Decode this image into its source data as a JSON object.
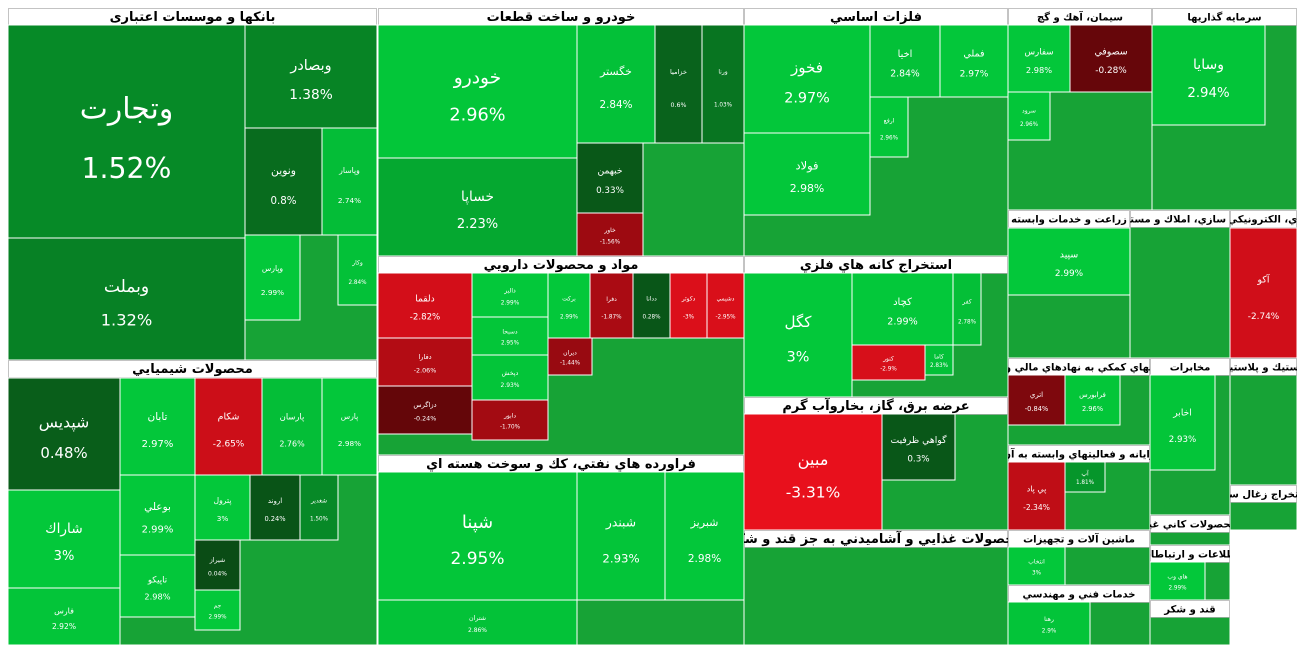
{
  "chart_data": {
    "type": "treemap",
    "sectors": [
      {
        "name": "بانکها و موسسات اعتباری",
        "stocks": [
          "وتجارت",
          "وبملت",
          "وبصادر",
          "ونوين",
          "وپاسار",
          "وپارس",
          "وكار"
        ],
        "values": [
          1.52,
          1.32,
          1.38,
          0.8,
          2.74,
          2.99,
          2.84
        ],
        "value_labels": [
          "1.52%",
          "1.32%",
          "1.38%",
          "0.8%",
          "2.74%",
          "2.99%",
          "2.84%"
        ]
      },
      {
        "name": "محصولات شيميايي",
        "stocks": [
          "شپديس",
          "شاراك",
          "فارس",
          "تابان",
          "شكام",
          "پارسان",
          "پارس",
          "بوعلي",
          "تاپيكو",
          "پترول",
          "اروند",
          "شغدير",
          "شيراز",
          "جم"
        ],
        "values": [
          0.48,
          3,
          2.92,
          2.97,
          -2.65,
          2.76,
          2.98,
          2.99,
          2.98,
          3,
          0.24,
          1.5,
          0.04,
          2.99
        ],
        "value_labels": [
          "0.48%",
          "3%",
          "2.92%",
          "2.97%",
          "-2.65%",
          "2.76%",
          "2.98%",
          "2.99%",
          "2.98%",
          "3%",
          "0.24%",
          "1.50%",
          "0.04%",
          "2.99%"
        ]
      },
      {
        "name": "خودرو و ساخت قطعات",
        "stocks": [
          "خودرو",
          "خساپا",
          "خگستر",
          "خزاميا",
          "ورنا",
          "خبهمن",
          "خاور"
        ],
        "values": [
          2.96,
          2.23,
          2.84,
          0.6,
          1.03,
          0.33,
          -1.56
        ],
        "value_labels": [
          "2.96%",
          "2.23%",
          "2.84%",
          "0.6%",
          "1.03%",
          "0.33%",
          "-1.56%"
        ]
      },
      {
        "name": "مواد و محصولات دارويي",
        "stocks": [
          "دلقما",
          "دفارا",
          "دزاگرس",
          "دالبر",
          "دسبحا",
          "دپخش",
          "دابور",
          "بركت",
          "دفرا",
          "ددانا",
          "دكوثر",
          "دشيمي",
          "ديران"
        ],
        "values": [
          -2.82,
          -2.06,
          -0.24,
          2.99,
          2.95,
          2.93,
          -1.7,
          2.99,
          -1.87,
          0.28,
          -3,
          -2.95,
          -1.44
        ],
        "value_labels": [
          "-2.82%",
          "-2.06%",
          "-0.24%",
          "2.99%",
          "2.95%",
          "2.93%",
          "-1.70%",
          "2.99%",
          "-1.87%",
          "0.28%",
          "-3%",
          "-2.95%",
          "-1.44%"
        ]
      },
      {
        "name": "فراورده هاي نفتي، كك و سوخت هسته اي",
        "stocks": [
          "شپنا",
          "شبندر",
          "شبريز",
          "شتران"
        ],
        "values": [
          2.95,
          2.93,
          2.98,
          2.86
        ],
        "value_labels": [
          "2.95%",
          "2.93%",
          "2.98%",
          "2.86%"
        ]
      },
      {
        "name": "فلزات اساسي",
        "stocks": [
          "فخوز",
          "فولاد",
          "اخيا",
          "فملي",
          "ارفع"
        ],
        "values": [
          2.97,
          2.98,
          2.84,
          2.97,
          2.96
        ],
        "value_labels": [
          "2.97%",
          "2.98%",
          "2.84%",
          "2.97%",
          "2.96%"
        ]
      },
      {
        "name": "استخراج كانه هاي فلزي",
        "stocks": [
          "كگل",
          "كچاد",
          "كنور",
          "كاما",
          "كفر"
        ],
        "values": [
          3,
          2.99,
          -2.9,
          2.83,
          2.78
        ],
        "value_labels": [
          "3%",
          "2.99%",
          "-2.9%",
          "2.83%",
          "2.78%"
        ]
      },
      {
        "name": "عرضه برق، گاز، بخاروآب گرم",
        "stocks": [
          "مبين",
          "گواهي ظرفيت"
        ],
        "values": [
          -3.31,
          0.3
        ],
        "value_labels": [
          "-3.31%",
          "0.3%"
        ]
      },
      {
        "name": "محصولات غذايي و آشاميدني به جز قند و شكر",
        "stocks": [],
        "values": [],
        "value_labels": []
      },
      {
        "name": "سيمان، آهك و گچ",
        "stocks": [
          "سفارس",
          "سصوفي",
          "سرود"
        ],
        "values": [
          2.98,
          -0.28,
          2.96
        ],
        "value_labels": [
          "2.98%",
          "-0.28%",
          "2.96%"
        ]
      },
      {
        "name": "سرمايه گذاريها",
        "stocks": [
          "وسايا"
        ],
        "values": [
          2.94
        ],
        "value_labels": [
          "2.94%"
        ]
      },
      {
        "name": "زراعت و خدمات وابسته",
        "stocks": [
          "سپيد"
        ],
        "values": [
          2.99
        ],
        "value_labels": [
          "2.99%"
        ]
      },
      {
        "name": "انبوه سازي، املاك و مستغلات",
        "stocks": [],
        "values": [],
        "value_labels": []
      },
      {
        "name": "كامپيوتري، الكترونيكي و نوري",
        "stocks": [
          "آكو"
        ],
        "values": [
          -2.74
        ],
        "value_labels": [
          "-2.74%"
        ]
      },
      {
        "name": "فعاليتهاي كمكي به نهادهاي مالي واسط",
        "stocks": [
          "اتري",
          "فرابورس"
        ],
        "values": [
          -0.84,
          2.96
        ],
        "value_labels": [
          "-0.84%",
          "2.96%"
        ]
      },
      {
        "name": "مخابرات",
        "stocks": [
          "اخابر"
        ],
        "values": [
          2.93
        ],
        "value_labels": [
          "2.93%"
        ]
      },
      {
        "name": "رايانه و فعاليتهاي وابسته به آن",
        "stocks": [
          "پي پاد",
          "آپ"
        ],
        "values": [
          -2.34,
          1.81
        ],
        "value_labels": [
          "-2.34%",
          "1.81%"
        ]
      },
      {
        "name": "ماشين آلات و تجهيزات",
        "stocks": [
          "انتخاب"
        ],
        "values": [
          3
        ],
        "value_labels": [
          "3%"
        ]
      },
      {
        "name": "خدمات فني و مهندسي",
        "stocks": [
          "رهنا"
        ],
        "values": [
          2.9
        ],
        "value_labels": [
          "2.9%"
        ]
      },
      {
        "name": "اطلاعات و ارتباطات",
        "stocks": [
          "هاي وب"
        ],
        "values": [
          2.99
        ],
        "value_labels": [
          "2.99%"
        ]
      },
      {
        "name": "لاستيك و پلاستيك",
        "stocks": [],
        "values": [],
        "value_labels": []
      },
      {
        "name": "استخراج زغال سنگ",
        "stocks": [],
        "values": [],
        "value_labels": []
      },
      {
        "name": "ساير محصولات كاني غيرفلزي",
        "stocks": [],
        "values": [],
        "value_labels": []
      },
      {
        "name": "قند و شكر",
        "stocks": [],
        "values": [],
        "value_labels": []
      }
    ]
  }
}
